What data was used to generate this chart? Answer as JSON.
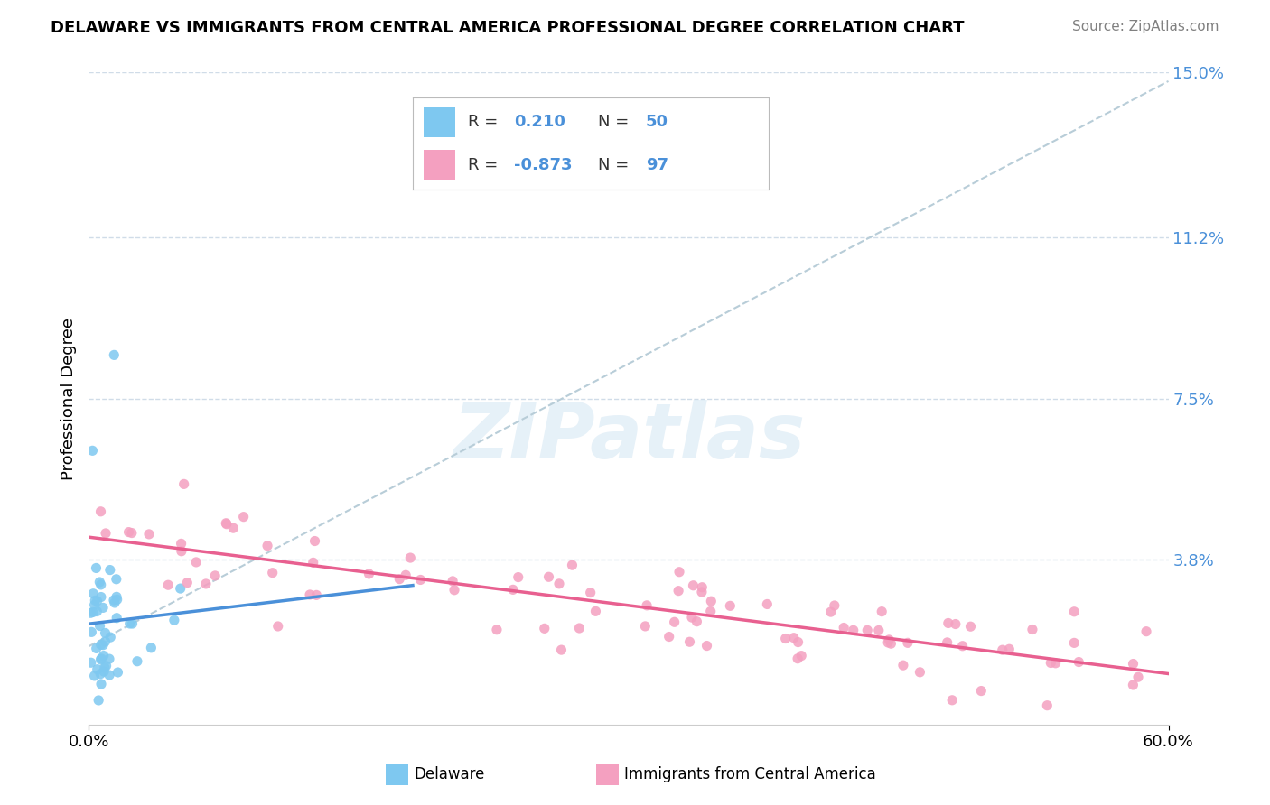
{
  "title": "DELAWARE VS IMMIGRANTS FROM CENTRAL AMERICA PROFESSIONAL DEGREE CORRELATION CHART",
  "source": "Source: ZipAtlas.com",
  "ylabel": "Professional Degree",
  "x_min": 0.0,
  "x_max": 0.6,
  "y_min": 0.0,
  "y_max": 0.15,
  "y_ticks": [
    0.038,
    0.075,
    0.112,
    0.15
  ],
  "y_tick_labels": [
    "3.8%",
    "7.5%",
    "11.2%",
    "15.0%"
  ],
  "x_ticks": [
    0.0,
    0.6
  ],
  "x_tick_labels": [
    "0.0%",
    "60.0%"
  ],
  "delaware_color": "#7ec8f0",
  "immigrants_color": "#f4a0c0",
  "delaware_line_color": "#4a90d9",
  "immigrants_line_color": "#e86090",
  "trend_line_color": "#b8cdd8",
  "background_color": "#ffffff",
  "grid_color": "#d0dce8",
  "watermark_text": "ZIPatlas",
  "r_delaware": 0.21,
  "n_delaware": 50,
  "r_immigrants": -0.873,
  "n_immigrants": 97
}
